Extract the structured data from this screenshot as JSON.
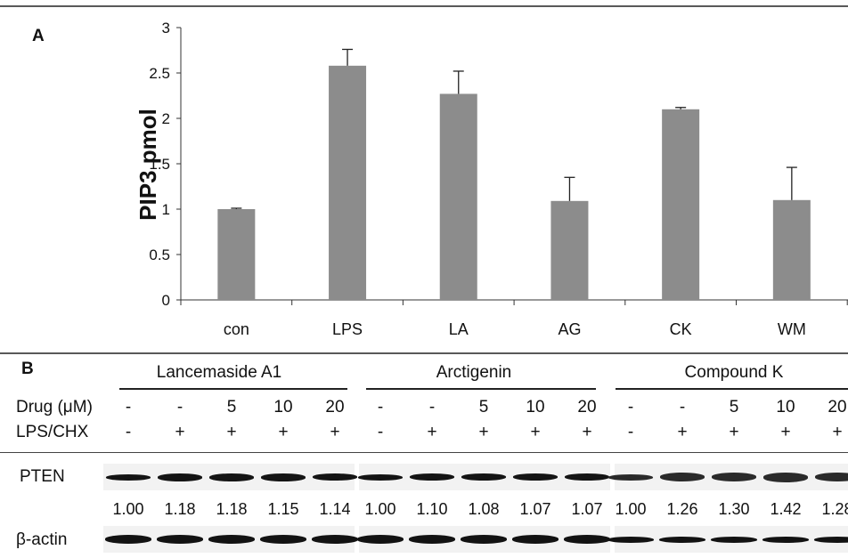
{
  "panelA": {
    "label": "A",
    "chart_data": {
      "type": "bar",
      "categories": [
        "con",
        "LPS",
        "LA",
        "AG",
        "CK",
        "WM"
      ],
      "values": [
        1.0,
        2.58,
        2.27,
        1.09,
        2.1,
        1.1
      ],
      "errors": [
        0.01,
        0.18,
        0.25,
        0.26,
        0.02,
        0.36
      ],
      "ylabel": "PIP3 pmol",
      "xlabel": "",
      "ylim": [
        0,
        3
      ],
      "yticks": [
        "0",
        "0.5",
        "1",
        "1.5",
        "2",
        "2.5",
        "3"
      ],
      "bar_color": "#8c8c8c",
      "grid": false
    }
  },
  "panelB": {
    "label": "B",
    "groups": [
      {
        "name": "Lancemaside A1",
        "drug": [
          "-",
          "-",
          "5",
          "10",
          "20"
        ],
        "lps": [
          "-",
          "+",
          "+",
          "+",
          "+"
        ],
        "densitometry": [
          "1.00",
          "1.18",
          "1.18",
          "1.15",
          "1.14"
        ]
      },
      {
        "name": "Arctigenin",
        "drug": [
          "-",
          "-",
          "5",
          "10",
          "20"
        ],
        "lps": [
          "-",
          "+",
          "+",
          "+",
          "+"
        ],
        "densitometry": [
          "1.00",
          "1.10",
          "1.08",
          "1.07",
          "1.07"
        ]
      },
      {
        "name": "Compound K",
        "drug": [
          "-",
          "-",
          "5",
          "10",
          "20"
        ],
        "lps": [
          "-",
          "+",
          "+",
          "+",
          "+"
        ],
        "densitometry": [
          "1.00",
          "1.26",
          "1.30",
          "1.42",
          "1.28"
        ]
      }
    ],
    "row_labels": {
      "drug": "Drug (μM)",
      "lps": "LPS/CHX",
      "pten": "PTEN",
      "actin": "β-actin"
    }
  }
}
